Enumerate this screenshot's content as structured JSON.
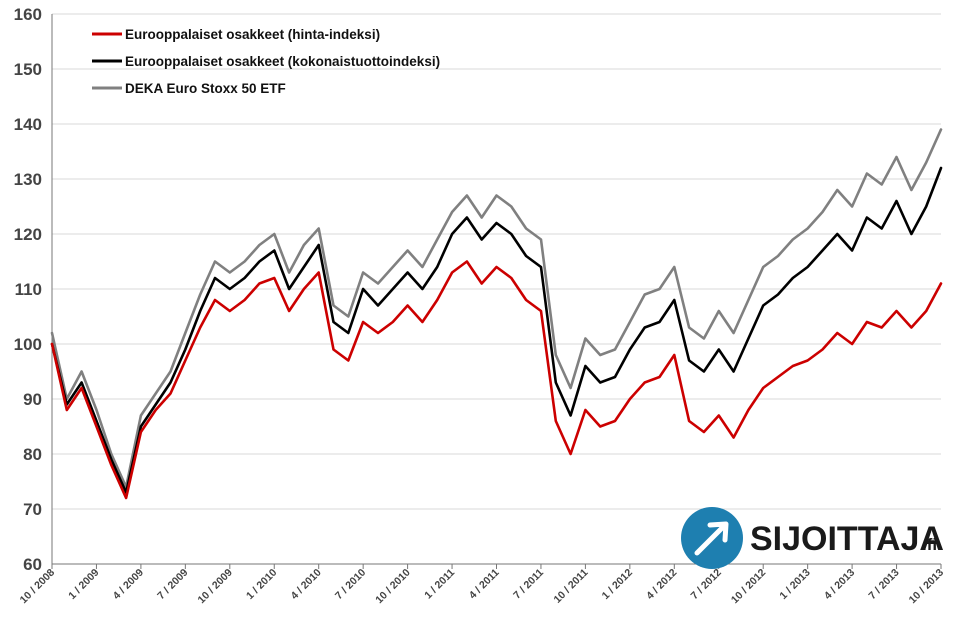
{
  "chart_data": {
    "type": "line",
    "title": "",
    "xlabel": "",
    "ylabel": "",
    "ylim": [
      60,
      160
    ],
    "yticks": [
      60,
      70,
      80,
      90,
      100,
      110,
      120,
      130,
      140,
      150,
      160
    ],
    "x_tick_labels": [
      "10 / 2008",
      "1 / 2009",
      "4 / 2009",
      "7 / 2009",
      "10 / 2009",
      "1 / 2010",
      "4 / 2010",
      "7 / 2010",
      "10 / 2010",
      "1 / 2011",
      "4 / 2011",
      "7 / 2011",
      "10 / 2011",
      "1 / 2012",
      "4 / 2012",
      "7 / 2012",
      "10 / 2012",
      "1 / 2013",
      "4 / 2013",
      "7 / 2013",
      "10 / 2013"
    ],
    "grid": "horizontal",
    "legend_position": "top-left",
    "x": [
      "10/2008",
      "11/2008",
      "12/2008",
      "1/2009",
      "2/2009",
      "3/2009",
      "4/2009",
      "5/2009",
      "6/2009",
      "7/2009",
      "8/2009",
      "9/2009",
      "10/2009",
      "11/2009",
      "12/2009",
      "1/2010",
      "2/2010",
      "3/2010",
      "4/2010",
      "5/2010",
      "6/2010",
      "7/2010",
      "8/2010",
      "9/2010",
      "10/2010",
      "11/2010",
      "12/2010",
      "1/2011",
      "2/2011",
      "3/2011",
      "4/2011",
      "5/2011",
      "6/2011",
      "7/2011",
      "8/2011",
      "9/2011",
      "10/2011",
      "11/2011",
      "12/2011",
      "1/2012",
      "2/2012",
      "3/2012",
      "4/2012",
      "5/2012",
      "6/2012",
      "7/2012",
      "8/2012",
      "9/2012",
      "10/2012",
      "11/2012",
      "12/2012",
      "1/2013",
      "2/2013",
      "3/2013",
      "4/2013",
      "5/2013",
      "6/2013",
      "7/2013",
      "8/2013",
      "9/2013",
      "10/2013"
    ],
    "series": [
      {
        "name": "Eurooppalaiset osakkeet (hinta-indeksi)",
        "color": "#cc0000",
        "values": [
          100,
          88,
          92,
          85,
          78,
          72,
          84,
          88,
          91,
          97,
          103,
          108,
          106,
          108,
          111,
          112,
          106,
          110,
          113,
          99,
          97,
          104,
          102,
          104,
          107,
          104,
          108,
          113,
          115,
          111,
          114,
          112,
          108,
          106,
          86,
          80,
          88,
          85,
          86,
          90,
          93,
          94,
          98,
          86,
          84,
          87,
          83,
          88,
          92,
          94,
          96,
          97,
          99,
          102,
          100,
          104,
          103,
          106,
          103,
          106,
          111
        ]
      },
      {
        "name": "Eurooppalaiset osakkeet (kokonaistuottoindeksi)",
        "color": "#000000",
        "values": [
          100,
          89,
          93,
          86,
          79,
          73,
          85,
          89,
          93,
          99,
          106,
          112,
          110,
          112,
          115,
          117,
          110,
          114,
          118,
          104,
          102,
          110,
          107,
          110,
          113,
          110,
          114,
          120,
          123,
          119,
          122,
          120,
          116,
          114,
          93,
          87,
          96,
          93,
          94,
          99,
          103,
          104,
          108,
          97,
          95,
          99,
          95,
          101,
          107,
          109,
          112,
          114,
          117,
          120,
          117,
          123,
          121,
          126,
          120,
          125,
          132
        ]
      },
      {
        "name": "DEKA Euro Stoxx 50 ETF",
        "color": "#808080",
        "values": [
          102,
          90,
          95,
          88,
          80,
          74,
          87,
          91,
          95,
          102,
          109,
          115,
          113,
          115,
          118,
          120,
          113,
          118,
          121,
          107,
          105,
          113,
          111,
          114,
          117,
          114,
          119,
          124,
          127,
          123,
          127,
          125,
          121,
          119,
          98,
          92,
          101,
          98,
          99,
          104,
          109,
          110,
          114,
          103,
          101,
          106,
          102,
          108,
          114,
          116,
          119,
          121,
          124,
          128,
          125,
          131,
          129,
          134,
          128,
          133,
          139
        ]
      }
    ]
  },
  "brand": {
    "name": "SIJOITTAJA",
    "suffix": ".fi"
  }
}
